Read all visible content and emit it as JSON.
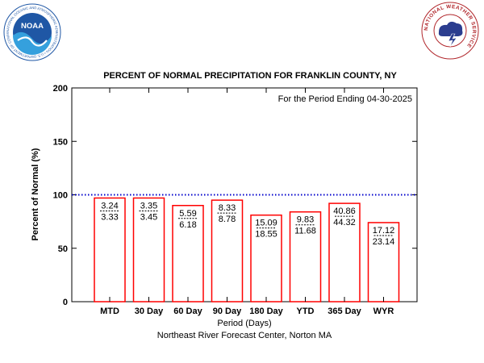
{
  "logos": {
    "noaa": {
      "icon": "noaa-logo",
      "text": "NOAA",
      "ring_text": "NATIONAL OCEANIC AND ATMOSPHERIC ADMINISTRATION • U.S. DEPARTMENT OF COMMERCE"
    },
    "nws": {
      "icon": "nws-logo",
      "ring_text": "NATIONAL WEATHER SERVICE"
    }
  },
  "colors": {
    "bar_edge": "#ff0000",
    "normal_line": "#0000cc",
    "axis": "#000000",
    "noaa_blue": "#1f57a5",
    "nws_red": "#b1272c"
  },
  "chart_data": {
    "type": "bar",
    "title": "PERCENT OF NORMAL PRECIPITATION FOR FRANKLIN COUNTY, NY",
    "annotation": "For the Period Ending 04-30-2025",
    "xlabel": "Period (Days)",
    "ylabel": "Percent of Normal (%)",
    "credit": "Northeast River Forecast Center, Norton MA",
    "ylim": [
      0,
      200
    ],
    "yticks": [
      0,
      50,
      100,
      150,
      200
    ],
    "reference_line": 100,
    "categories": [
      "MTD",
      "30 Day",
      "60 Day",
      "90 Day",
      "180 Day",
      "YTD",
      "365 Day",
      "WYR"
    ],
    "values": [
      97,
      97,
      90,
      95,
      81,
      84,
      92,
      74
    ],
    "observed": [
      "3.24",
      "3.35",
      "5.59",
      "8.33",
      "15.09",
      "9.83",
      "40.86",
      "17.12"
    ],
    "normal": [
      "3.33",
      "3.45",
      "6.18",
      "8.78",
      "18.55",
      "11.68",
      "44.32",
      "23.14"
    ],
    "grid": false,
    "legend": "none"
  }
}
